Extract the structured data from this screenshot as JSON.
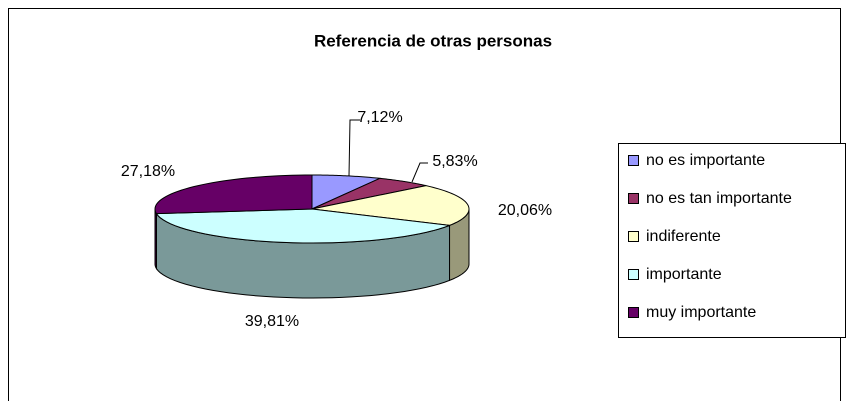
{
  "chart_data": {
    "type": "pie3d",
    "title": "Referencia de otras personas",
    "categories": [
      "no es importante",
      "no es tan importante",
      "indiferente",
      "importante",
      "muy importante"
    ],
    "values": [
      7.12,
      5.83,
      20.06,
      39.81,
      27.18
    ],
    "value_labels": [
      "7,12%",
      "5,83%",
      "20,06%",
      "39,81%",
      "27,18%"
    ],
    "colors": [
      "#9999FF",
      "#993366",
      "#FFFFCC",
      "#CCFFFF",
      "#660066"
    ],
    "legend": "right"
  }
}
